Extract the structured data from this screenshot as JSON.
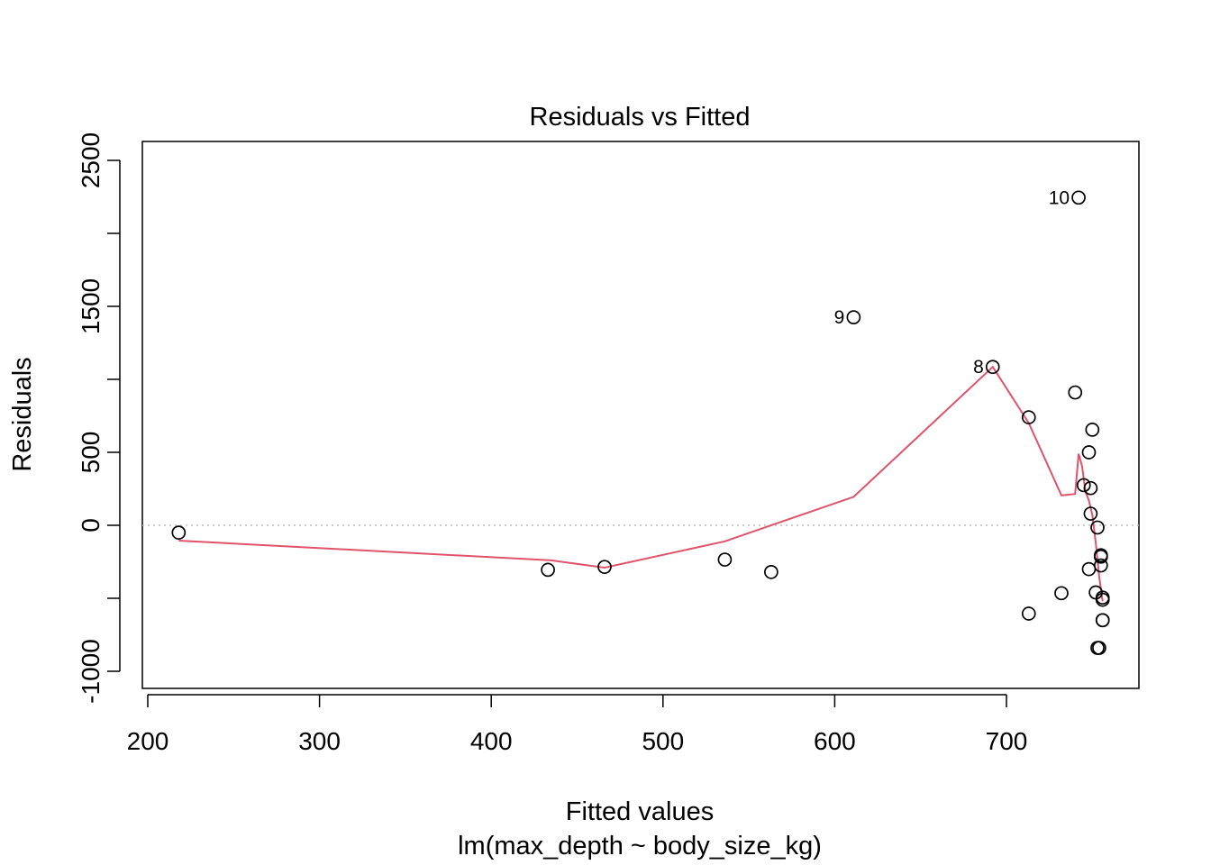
{
  "chart_data": {
    "type": "scatter",
    "title": "Residuals vs Fitted",
    "xlabel": "Fitted values",
    "subtitle": "lm(max_depth ~ body_size_kg)",
    "ylabel": "Residuals",
    "xlim": [
      200,
      775
    ],
    "ylim": [
      -1110,
      2620
    ],
    "x_ticks": [
      200,
      300,
      400,
      500,
      600,
      700
    ],
    "y_ticks": [
      -1000,
      0,
      500,
      1500,
      2500
    ],
    "y_minor_ticks": [
      -500,
      1000,
      2000
    ],
    "x": [
      218,
      433,
      466,
      536,
      563,
      611,
      692,
      713,
      713,
      732,
      740,
      742,
      745,
      748,
      748,
      749,
      749,
      750,
      752,
      753,
      753,
      754,
      755,
      755,
      755,
      756,
      756,
      756,
      756
    ],
    "y": [
      -50,
      -305,
      -285,
      -235,
      -320,
      1425,
      1085,
      740,
      -605,
      -465,
      910,
      2245,
      275,
      500,
      -300,
      80,
      255,
      655,
      -460,
      -840,
      -15,
      -840,
      -275,
      -215,
      -205,
      -495,
      -510,
      -650,
      -650
    ],
    "labeled_points": [
      {
        "label": "10",
        "x": 742,
        "y": 2245
      },
      {
        "label": "9",
        "x": 611,
        "y": 1425
      },
      {
        "label": "8",
        "x": 692,
        "y": 1085
      }
    ],
    "smooth_line": {
      "x": [
        218,
        435,
        466,
        536,
        611,
        692,
        713,
        732,
        740,
        742,
        744,
        746,
        748,
        750,
        752,
        754,
        756
      ],
      "y": [
        -105,
        -240,
        -290,
        -110,
        195,
        1085,
        700,
        205,
        215,
        490,
        405,
        230,
        170,
        70,
        -120,
        -350,
        -520
      ],
      "color": "#DF536B"
    },
    "reference_line": {
      "y": 0,
      "style": "dotted",
      "color": "#BEBEBE"
    },
    "grid": false,
    "legend": "none"
  }
}
